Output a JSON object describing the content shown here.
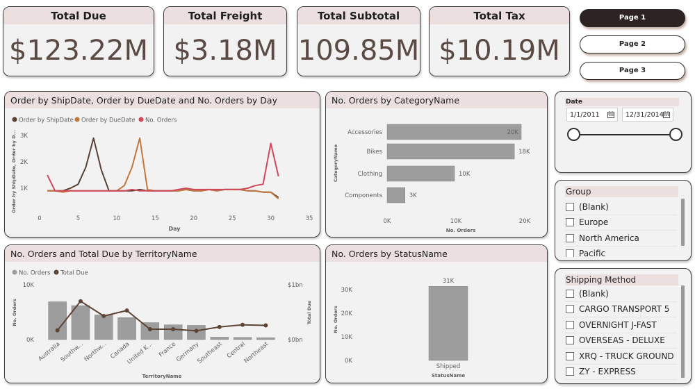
{
  "kpis": [
    {
      "title": "Total Due",
      "value": "$123.22M"
    },
    {
      "title": "Total Freight",
      "value": "$3.18M"
    },
    {
      "title": "Total Subtotal",
      "value": "109.85M"
    },
    {
      "title": "Total Tax",
      "value": "$10.19M"
    }
  ],
  "nav": {
    "pages": [
      {
        "label": "Page 1",
        "active": true
      },
      {
        "label": "Page 2",
        "active": false
      },
      {
        "label": "Page 3",
        "active": false
      }
    ]
  },
  "date_slicer": {
    "title": "Date",
    "start": "1/1/2011",
    "end": "12/31/2014",
    "icon": "calendar-icon"
  },
  "group_slicer": {
    "title": "Group",
    "items": [
      "(Blank)",
      "Europe",
      "North America",
      "Pacific"
    ]
  },
  "shipping_slicer": {
    "title": "Shipping Method",
    "items": [
      "(Blank)",
      "CARGO TRANSPORT 5",
      "OVERNIGHT J-FAST",
      "OVERSEAS - DELUXE",
      "XRQ - TRUCK GROUND",
      "ZY - EXPRESS"
    ]
  },
  "colors": {
    "ship": "#5a4034",
    "due": "#c1773c",
    "orders": "#d0485b",
    "bar": "#9d9d9d",
    "header": "#ecdfe0",
    "line_total": "#5e4434"
  },
  "chart_data": [
    {
      "type": "line",
      "title": "Order by ShipDate, Order by DueDate and No. Orders by Day",
      "xlabel": "Day",
      "ylabel": "Order by ShipDate, Order by D...",
      "xlim": [
        0,
        35
      ],
      "ylim": [
        0,
        3000
      ],
      "xticks": [
        "0",
        "5",
        "10",
        "15",
        "20",
        "25",
        "30",
        "35"
      ],
      "yticks": [
        "1K",
        "2K",
        "3K"
      ],
      "x": [
        1,
        2,
        3,
        4,
        5,
        6,
        7,
        8,
        9,
        10,
        11,
        12,
        13,
        14,
        15,
        16,
        17,
        18,
        19,
        20,
        21,
        22,
        23,
        24,
        25,
        26,
        27,
        28,
        29,
        30,
        31
      ],
      "series": [
        {
          "name": "Order by ShipDate",
          "values": [
            900,
            900,
            900,
            1000,
            1150,
            1800,
            2900,
            1700,
            900,
            900,
            900,
            900,
            950,
            900,
            900,
            900,
            900,
            900,
            950,
            900,
            900,
            950,
            900,
            950,
            950,
            950,
            900,
            900,
            850,
            850,
            650
          ]
        },
        {
          "name": "Order by DueDate",
          "values": [
            900,
            900,
            850,
            900,
            900,
            900,
            900,
            900,
            900,
            900,
            1100,
            1800,
            2900,
            950,
            900,
            900,
            900,
            900,
            950,
            900,
            900,
            950,
            900,
            950,
            950,
            950,
            900,
            900,
            850,
            850,
            600
          ]
        },
        {
          "name": "No. Orders",
          "values": [
            1500,
            900,
            900,
            900,
            900,
            900,
            900,
            900,
            900,
            900,
            900,
            950,
            900,
            900,
            900,
            900,
            900,
            950,
            1000,
            950,
            950,
            950,
            950,
            950,
            950,
            950,
            1000,
            1100,
            1150,
            2700,
            1450
          ]
        }
      ]
    },
    {
      "type": "bar",
      "title": "No. Orders by CategoryName",
      "xlabel": "No. Orders",
      "ylabel": "CategoryName",
      "categories": [
        "Accessories",
        "Bikes",
        "Clothing",
        "Components"
      ],
      "values": [
        19500,
        18500,
        9800,
        2600
      ],
      "labels": [
        "20K",
        "18K",
        "10K",
        "3K"
      ],
      "xticks": [
        "0K",
        "10K",
        "20K"
      ],
      "xlim": [
        0,
        20000
      ]
    },
    {
      "type": "bar",
      "title": "No. Orders and Total Due by TerritoryName",
      "xlabel": "TerritoryName",
      "ylabel": "No. Orders",
      "y2label": "Total Due",
      "categories": [
        "Australia",
        "Southw...",
        "Northw...",
        "Canada",
        "United K...",
        "France",
        "Germany",
        "Southeast",
        "Central",
        "Northeast"
      ],
      "yticks": [
        "0K",
        "10K"
      ],
      "y2ticks": [
        "$0bn",
        "$1bn"
      ],
      "ylim": [
        0,
        10000
      ],
      "series": [
        {
          "name": "No. Orders",
          "values": [
            6900,
            6200,
            4500,
            4000,
            3100,
            2700,
            2600,
            450,
            400,
            350
          ]
        },
        {
          "name": "Total Due",
          "values": [
            0.17,
            0.7,
            0.43,
            0.53,
            0.19,
            0.19,
            0.16,
            0.23,
            0.27,
            0.26
          ]
        }
      ]
    },
    {
      "type": "bar",
      "title": "No. Orders by StatusName",
      "xlabel": "StatusName",
      "ylabel": "No. Orders",
      "categories": [
        "Shipped"
      ],
      "values": [
        31400
      ],
      "labels": [
        "31K"
      ],
      "yticks": [
        "0K",
        "10K",
        "20K",
        "30K"
      ],
      "ylim": [
        0,
        35000
      ]
    }
  ]
}
